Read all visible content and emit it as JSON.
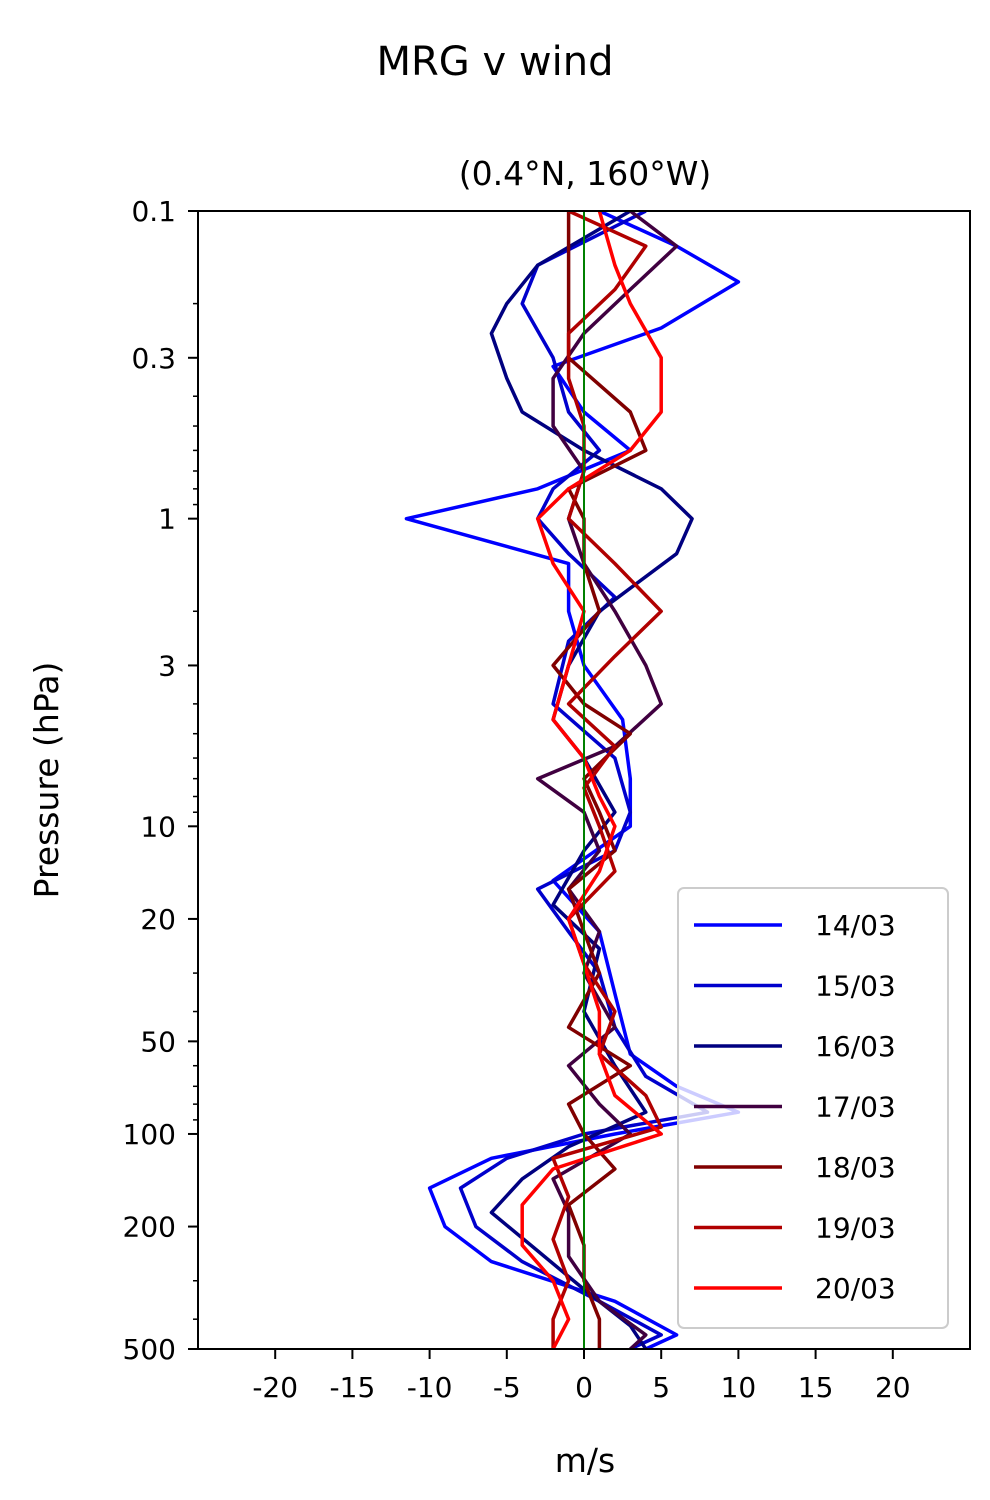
{
  "chart_data": {
    "type": "line",
    "suptitle": "MRG v wind",
    "title": "(0.4°N, 160°W)",
    "xlabel": "m/s",
    "ylabel": "Pressure (hPa)",
    "xlim": [
      -25,
      25
    ],
    "ylim": [
      500,
      0.1
    ],
    "yscale": "log",
    "xticks": [
      -20,
      -15,
      -10,
      -5,
      0,
      5,
      10,
      15,
      20
    ],
    "xtick_labels": [
      "-20",
      "-15",
      "-10",
      "-5",
      "0",
      "5",
      "10",
      "15",
      "20"
    ],
    "yticks": [
      0.1,
      0.3,
      1,
      3,
      10,
      20,
      50,
      100,
      200,
      500
    ],
    "ytick_labels": [
      "0.1",
      "0.3",
      "1",
      "3",
      "10",
      "20",
      "50",
      "100",
      "200",
      "500"
    ],
    "zero_line_color": "#008000",
    "legend_position": "lower right",
    "series": [
      {
        "name": "14/03",
        "color": "#0000ff",
        "p": [
          0.1,
          0.13,
          0.17,
          0.24,
          0.32,
          0.45,
          0.6,
          0.8,
          1.0,
          1.4,
          2.0,
          3.0,
          4.5,
          7,
          10,
          15,
          22,
          35,
          55,
          70,
          85,
          100,
          120,
          150,
          200,
          260,
          350,
          450,
          500
        ],
        "v": [
          1,
          6,
          10,
          5,
          -2,
          0,
          3,
          -3,
          -11.5,
          -1,
          -1,
          0,
          2.5,
          3,
          3,
          -2,
          1,
          2,
          3,
          6,
          10,
          2,
          -6,
          -10,
          -9,
          -6,
          2,
          6,
          4
        ]
      },
      {
        "name": "15/03",
        "color": "#0000cc",
        "p": [
          0.1,
          0.15,
          0.2,
          0.3,
          0.45,
          0.6,
          0.8,
          1.0,
          1.3,
          1.8,
          2.5,
          4,
          6,
          9,
          12,
          16,
          22,
          30,
          45,
          65,
          85,
          100,
          120,
          150,
          200,
          260,
          350,
          450,
          500
        ],
        "v": [
          4,
          -3,
          -4,
          -2,
          -1,
          1,
          -2,
          -3,
          -1,
          2,
          -1,
          -2,
          2,
          3,
          2,
          -3,
          -1,
          1,
          2,
          4,
          8,
          0,
          -5,
          -8,
          -7,
          -4,
          1,
          5,
          3
        ]
      },
      {
        "name": "16/03",
        "color": "#000080",
        "p": [
          0.1,
          0.15,
          0.2,
          0.25,
          0.35,
          0.45,
          0.6,
          0.8,
          1.0,
          1.3,
          2.0,
          3.0,
          4.5,
          6,
          9,
          12,
          18,
          25,
          40,
          60,
          85,
          110,
          140,
          180,
          240,
          320,
          420,
          500
        ],
        "v": [
          3,
          -3,
          -5,
          -6,
          -5,
          -4,
          0,
          5,
          7,
          6,
          1,
          -1,
          -2,
          0,
          2,
          0,
          -2,
          1,
          0,
          2,
          4,
          -1,
          -4,
          -6,
          -3,
          0,
          3,
          4
        ]
      },
      {
        "name": "17/03",
        "color": "#400040",
        "p": [
          0.1,
          0.13,
          0.18,
          0.25,
          0.35,
          0.5,
          0.7,
          1.0,
          1.4,
          2.0,
          3.0,
          4.0,
          5.5,
          7,
          9,
          12,
          16,
          22,
          30,
          45,
          60,
          80,
          100,
          140,
          180,
          250,
          350,
          450,
          500
        ],
        "v": [
          3,
          6,
          3,
          0,
          -2,
          -2,
          0,
          -1,
          0,
          2,
          4,
          5,
          2,
          -3,
          0,
          1,
          -1,
          1,
          0,
          2,
          -1,
          1,
          3,
          -2,
          -1,
          -1,
          1,
          4,
          3
        ]
      },
      {
        "name": "18/03",
        "color": "#800000",
        "p": [
          0.1,
          0.15,
          0.2,
          0.3,
          0.45,
          0.6,
          0.8,
          1.0,
          1.4,
          2.0,
          3.0,
          4.0,
          5.0,
          7,
          9,
          12,
          16,
          22,
          30,
          45,
          60,
          80,
          100,
          130,
          170,
          230,
          300,
          400,
          500
        ],
        "v": [
          -1,
          -1,
          -1,
          -1,
          3,
          4,
          -1,
          0,
          0,
          1,
          -2,
          0,
          3,
          0,
          1,
          2,
          -1,
          0,
          1,
          -1,
          3,
          -1,
          0,
          2,
          -1,
          0,
          0,
          1,
          1
        ]
      },
      {
        "name": "19/03",
        "color": "#b00000",
        "p": [
          0.1,
          0.13,
          0.18,
          0.25,
          0.35,
          0.5,
          0.7,
          1.0,
          1.4,
          2.0,
          2.8,
          4.0,
          5.5,
          7.5,
          10,
          14,
          20,
          28,
          40,
          55,
          75,
          95,
          120,
          160,
          220,
          300,
          400,
          500
        ],
        "v": [
          -1,
          4,
          2,
          -1,
          -1,
          0,
          0,
          -1,
          2,
          5,
          2,
          -1,
          2,
          0,
          1,
          2,
          -1,
          0,
          2,
          1,
          4,
          5,
          -2,
          -1,
          -2,
          -1,
          -2,
          -2
        ]
      },
      {
        "name": "20/03",
        "color": "#ff0000",
        "p": [
          0.1,
          0.15,
          0.2,
          0.3,
          0.45,
          0.6,
          0.8,
          1.0,
          1.4,
          2.0,
          3.0,
          4.5,
          6,
          8,
          10,
          14,
          20,
          28,
          40,
          55,
          75,
          100,
          130,
          170,
          230,
          300,
          400,
          500
        ],
        "v": [
          1,
          2,
          3,
          5,
          5,
          3,
          -1,
          -3,
          -2,
          0,
          -1,
          -2,
          0,
          1,
          2,
          1,
          -1,
          0,
          1,
          1,
          2,
          5,
          -2,
          -4,
          -4,
          -2,
          -1,
          -2
        ]
      }
    ]
  }
}
